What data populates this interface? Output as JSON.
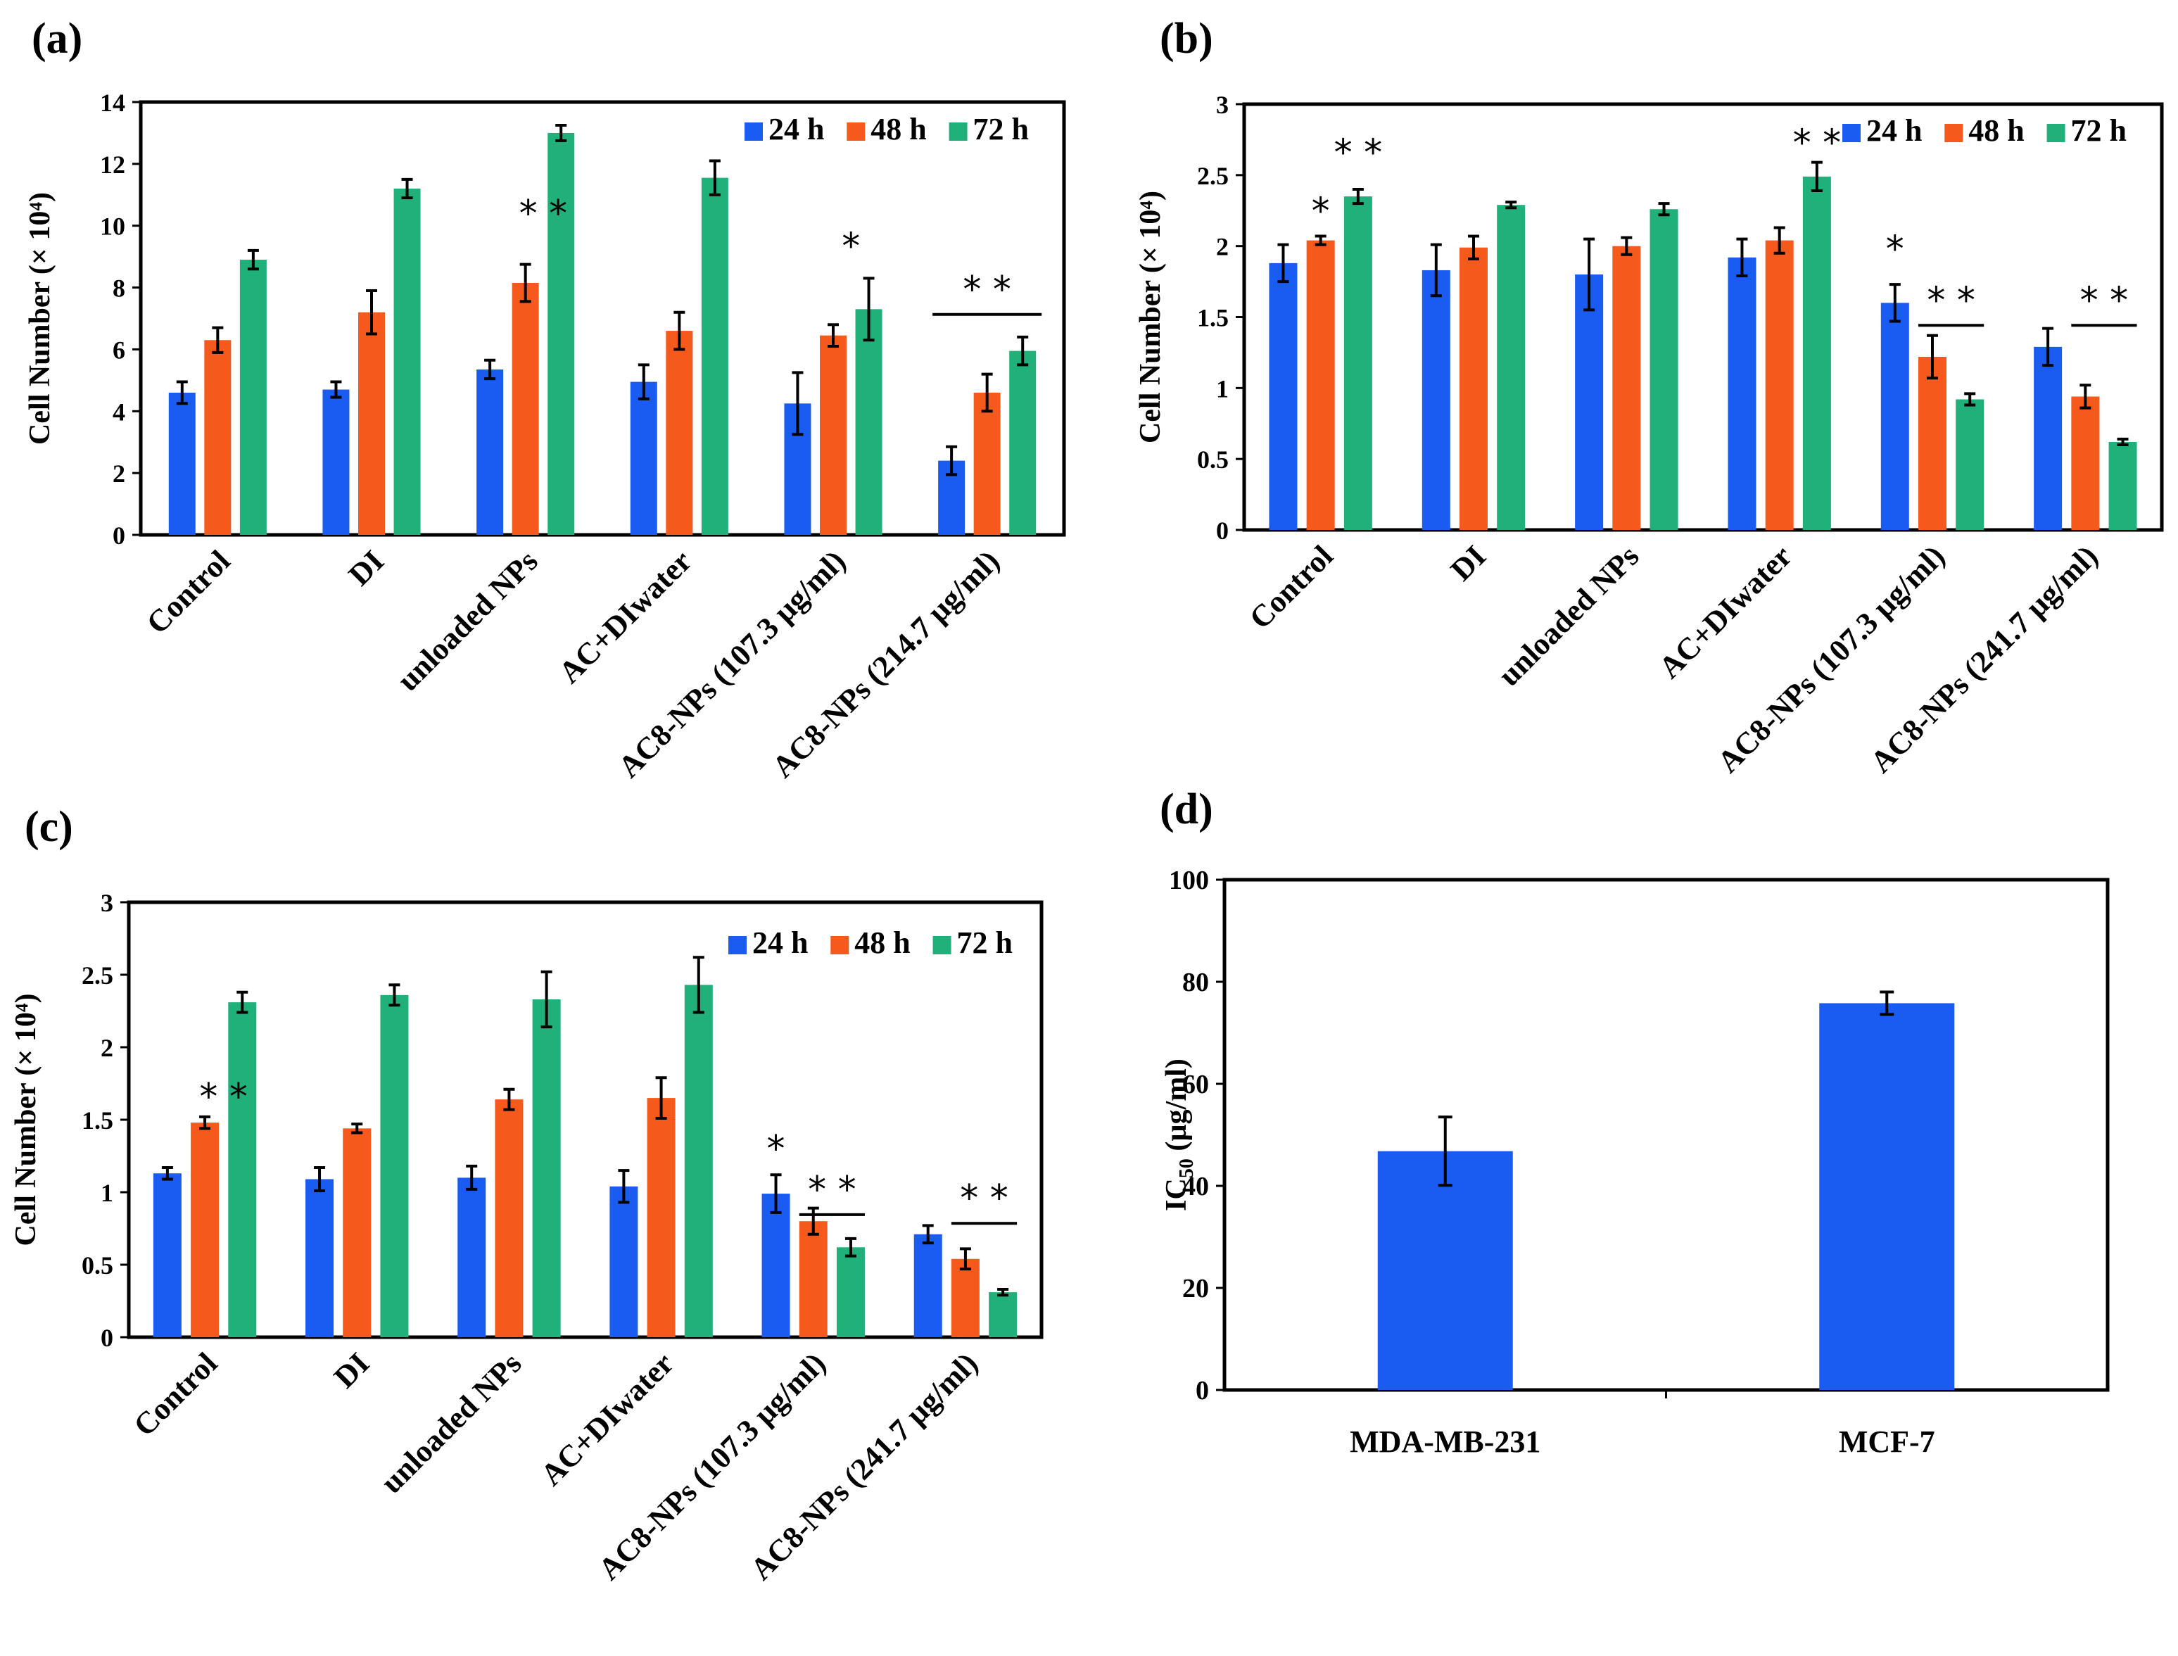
{
  "colors": {
    "h24": "#1a5cf2",
    "h48": "#f55a1c",
    "h72": "#20b07a",
    "bar": "#1a5cf2"
  },
  "panels": [
    {
      "label": "(a)",
      "type": "bar",
      "ylabel": "Cell Number (× 10⁴)",
      "ylim": [
        0,
        14
      ],
      "yticks": [
        "0",
        "2",
        "4",
        "6",
        "8",
        "10",
        "12",
        "14"
      ],
      "legend": [
        "24 h",
        "48 h",
        "72 h"
      ],
      "categories": [
        "Control",
        "DI",
        "unloaded NPs",
        "AC+DIwater",
        "AC8-NPs (107.3 µg/ml)",
        "AC8-NPs (214.7 µg/ml)"
      ],
      "series": [
        {
          "name": "24 h",
          "values": [
            4.6,
            4.7,
            5.35,
            4.95,
            4.25,
            2.4
          ],
          "errors": [
            0.35,
            0.25,
            0.3,
            0.55,
            1.0,
            0.45
          ]
        },
        {
          "name": "48 h",
          "values": [
            6.3,
            7.2,
            8.15,
            6.6,
            6.45,
            4.6
          ],
          "errors": [
            0.4,
            0.7,
            0.6,
            0.6,
            0.35,
            0.6
          ]
        },
        {
          "name": "72 h",
          "values": [
            8.9,
            11.2,
            13.0,
            11.55,
            7.3,
            5.95
          ],
          "errors": [
            0.3,
            0.3,
            0.25,
            0.55,
            1.0,
            0.45
          ]
        }
      ],
      "significance": [
        {
          "text": "* *",
          "category": 2,
          "line": false,
          "value": 10.4
        },
        {
          "text": "*",
          "category": 4,
          "line": false,
          "value": 9.35
        },
        {
          "text": "* *",
          "category": 5,
          "line": true,
          "value": 7.95
        }
      ]
    },
    {
      "label": "(b)",
      "type": "bar",
      "ylabel": "Cell Number (× 10⁴)",
      "ylim": [
        0,
        3
      ],
      "yticks": [
        "0",
        "0.5",
        "1",
        "1.5",
        "2",
        "2.5",
        "3"
      ],
      "legend": [
        "24 h",
        "48 h",
        "72 h"
      ],
      "categories": [
        "Control",
        "DI",
        "unloaded NPs",
        "AC+DIwater",
        "AC8-NPs (107.3 µg/ml)",
        "AC8-NPs (241.7 µg/ml)"
      ],
      "series": [
        {
          "name": "24 h",
          "values": [
            1.88,
            1.83,
            1.8,
            1.92,
            1.6,
            1.29
          ],
          "errors": [
            0.13,
            0.18,
            0.25,
            0.13,
            0.13,
            0.13
          ]
        },
        {
          "name": "48 h",
          "values": [
            2.04,
            1.99,
            2.0,
            2.04,
            1.22,
            0.94
          ],
          "errors": [
            0.03,
            0.08,
            0.06,
            0.09,
            0.15,
            0.08
          ]
        },
        {
          "name": "72 h",
          "values": [
            2.35,
            2.29,
            2.26,
            2.49,
            0.92,
            0.62
          ],
          "errors": [
            0.05,
            0.02,
            0.04,
            0.1,
            0.04,
            0.02
          ]
        }
      ],
      "significance": [
        {
          "text": "*",
          "category": 0,
          "series": 1,
          "line": false,
          "value": 2.25
        },
        {
          "text": "* *",
          "category": 0,
          "series": 2,
          "line": false,
          "value": 2.66
        },
        {
          "text": "* *",
          "category": 3,
          "series": 2,
          "line": false,
          "value": 2.73
        },
        {
          "text": "*",
          "category": 4,
          "series": 0,
          "line": false,
          "value": 1.98
        },
        {
          "text": "* *",
          "category": 4,
          "line": true,
          "value": 1.62
        },
        {
          "text": "* *",
          "category": 5,
          "line": true,
          "value": 1.62
        }
      ]
    },
    {
      "label": "(c)",
      "type": "bar",
      "ylabel": "Cell Number (× 10⁴)",
      "ylim": [
        0,
        3
      ],
      "yticks": [
        "0",
        "0.5",
        "1",
        "1.5",
        "2",
        "2.5",
        "3"
      ],
      "legend": [
        "24 h",
        "48 h",
        "72 h"
      ],
      "categories": [
        "Control",
        "DI",
        "unloaded NPs",
        "AC+DIwater",
        "AC8-NPs (107.3 µg/ml)",
        "AC8-NPs (241.7 µg/ml)"
      ],
      "series": [
        {
          "name": "24 h",
          "values": [
            1.13,
            1.09,
            1.1,
            1.04,
            0.99,
            0.71
          ],
          "errors": [
            0.04,
            0.08,
            0.08,
            0.11,
            0.13,
            0.06
          ]
        },
        {
          "name": "48 h",
          "values": [
            1.48,
            1.44,
            1.64,
            1.65,
            0.8,
            0.54
          ],
          "errors": [
            0.04,
            0.03,
            0.07,
            0.14,
            0.09,
            0.07
          ]
        },
        {
          "name": "72 h",
          "values": [
            2.31,
            2.36,
            2.33,
            2.43,
            0.62,
            0.31
          ],
          "errors": [
            0.07,
            0.07,
            0.19,
            0.19,
            0.06,
            0.02
          ]
        }
      ],
      "significance": [
        {
          "text": "* *",
          "category": 0,
          "line": false,
          "value": 1.66
        },
        {
          "text": "*",
          "category": 4,
          "series": 0,
          "line": false,
          "value": 1.3
        },
        {
          "text": "* *",
          "category": 4,
          "line": true,
          "value": 1.02
        },
        {
          "text": "* *",
          "category": 5,
          "line": true,
          "value": 0.96
        }
      ]
    },
    {
      "label": "(d)",
      "type": "bar",
      "ylabel_main": "IC",
      "ylabel_sub": "50",
      "ylabel_rest": " (µg/ml)",
      "ylim": [
        0,
        100
      ],
      "yticks": [
        "0",
        "20",
        "40",
        "60",
        "80",
        "100"
      ],
      "categories": [
        "MDA-MB-231",
        "MCF-7"
      ],
      "values": [
        46.8,
        75.8
      ],
      "errors": [
        6.7,
        2.2
      ]
    }
  ]
}
